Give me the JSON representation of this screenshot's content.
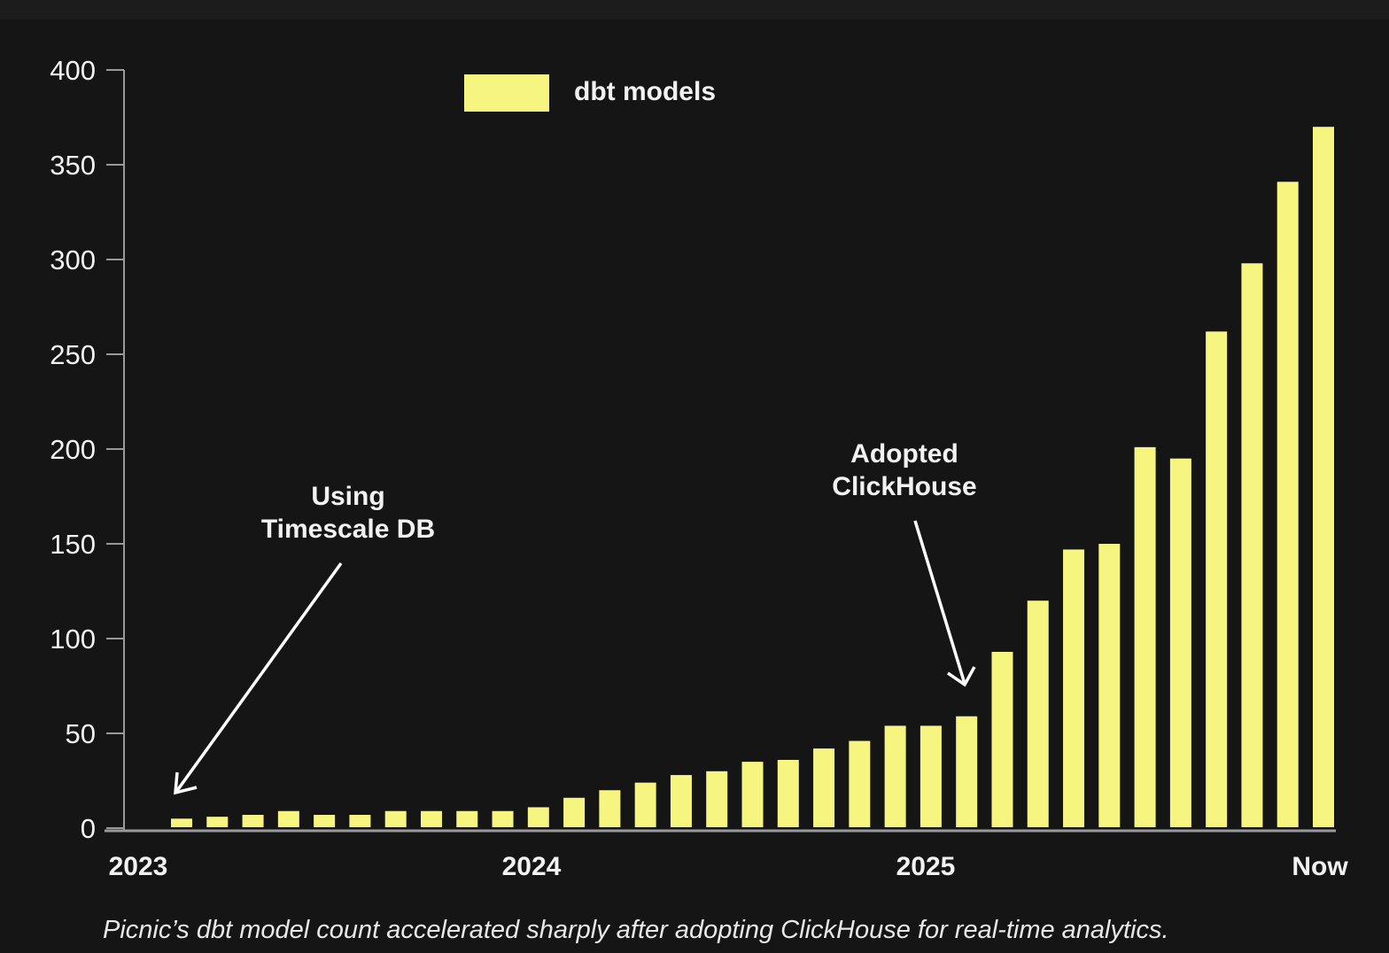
{
  "chart_data": {
    "type": "bar",
    "title": "",
    "xlabel": "",
    "ylabel": "",
    "ylim": [
      0,
      400
    ],
    "yticks": [
      0,
      50,
      100,
      150,
      200,
      250,
      300,
      350,
      400
    ],
    "xtick_labels": [
      "2023",
      "2024",
      "2025",
      "Now"
    ],
    "legend": {
      "label": "dbt models",
      "placement": "top-center"
    },
    "bar_color": "#f5f57f",
    "series": [
      {
        "name": "dbt models",
        "values": [
          5,
          6,
          7,
          9,
          7,
          7,
          9,
          9,
          9,
          9,
          11,
          16,
          20,
          24,
          28,
          30,
          35,
          36,
          42,
          46,
          54,
          54,
          59,
          93,
          120,
          147,
          150,
          201,
          195,
          262,
          298,
          341,
          370
        ]
      }
    ],
    "annotations": [
      {
        "text_lines": [
          "Using",
          "Timescale DB"
        ],
        "points_to_bar": 1
      },
      {
        "text_lines": [
          "Adopted",
          "ClickHouse"
        ],
        "points_to_bar": 23
      }
    ]
  },
  "caption": "Picnic’s dbt model count accelerated sharply after adopting ClickHouse for real-time analytics."
}
